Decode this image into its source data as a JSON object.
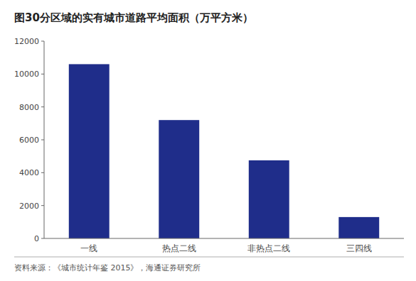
{
  "chart_data": {
    "type": "bar",
    "title": "图30分区域的实有城市道路平均面积（万平方米）",
    "categories": [
      "一线",
      "热点二线",
      "非热点二线",
      "三四线"
    ],
    "values": [
      10600,
      7200,
      4750,
      1300
    ],
    "color": "#1F2D8A",
    "ylim": [
      0,
      12000
    ],
    "yticks": [
      0,
      2000,
      4000,
      6000,
      8000,
      10000,
      12000
    ],
    "grid": false,
    "footnote": "资料来源：《城市统计年鉴 2015》，海通证券研究所"
  }
}
